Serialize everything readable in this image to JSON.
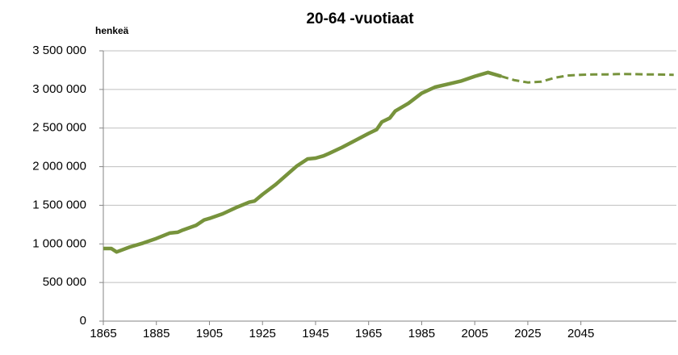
{
  "chart_data": {
    "type": "line",
    "title": "20-64 -vuotiaat",
    "y_label": "henkeä",
    "series": [
      {
        "color": "#77933c",
        "style": "solid",
        "x": [
          1865,
          1868,
          1870,
          1875,
          1880,
          1885,
          1890,
          1893,
          1895,
          1900,
          1903,
          1905,
          1910,
          1915,
          1920,
          1922,
          1925,
          1930,
          1935,
          1938,
          1942,
          1945,
          1948,
          1950,
          1955,
          1960,
          1965,
          1968,
          1970,
          1973,
          1975,
          1980,
          1985,
          1990,
          1995,
          2000,
          2005,
          2010,
          2015
        ],
        "values": [
          940000,
          940000,
          895000,
          960000,
          1010000,
          1070000,
          1140000,
          1150000,
          1180000,
          1240000,
          1310000,
          1330000,
          1390000,
          1470000,
          1540000,
          1555000,
          1640000,
          1770000,
          1920000,
          2010000,
          2100000,
          2110000,
          2140000,
          2170000,
          2250000,
          2340000,
          2430000,
          2480000,
          2580000,
          2630000,
          2720000,
          2820000,
          2950000,
          3030000,
          3070000,
          3110000,
          3170000,
          3220000,
          3170000
        ]
      },
      {
        "color": "#77933c",
        "style": "dashed",
        "x": [
          2015,
          2020,
          2025,
          2030,
          2035,
          2040,
          2045,
          2050,
          2055,
          2060,
          2065,
          2070,
          2075,
          2080
        ],
        "values": [
          3170000,
          3120000,
          3090000,
          3100000,
          3150000,
          3180000,
          3190000,
          3195000,
          3195000,
          3200000,
          3198000,
          3195000,
          3193000,
          3190000
        ]
      }
    ],
    "xlim": [
      1865,
      2081
    ],
    "xticks": [
      1865,
      1885,
      1905,
      1925,
      1945,
      1965,
      1985,
      2005,
      2025,
      2045
    ],
    "ylim": [
      0,
      3500000
    ],
    "yticks": [
      0,
      {
        "value": 500000,
        "label": "500 000"
      },
      {
        "value": 1000000,
        "label": "1 000 000"
      },
      {
        "value": 1500000,
        "label": "1 500 000"
      },
      {
        "value": 2000000,
        "label": "2 000 000"
      },
      {
        "value": 2500000,
        "label": "2 500 000"
      },
      {
        "value": 3000000,
        "label": "3 000 000"
      },
      {
        "value": 3500000,
        "label": "3 500 000"
      }
    ],
    "grid": true
  }
}
